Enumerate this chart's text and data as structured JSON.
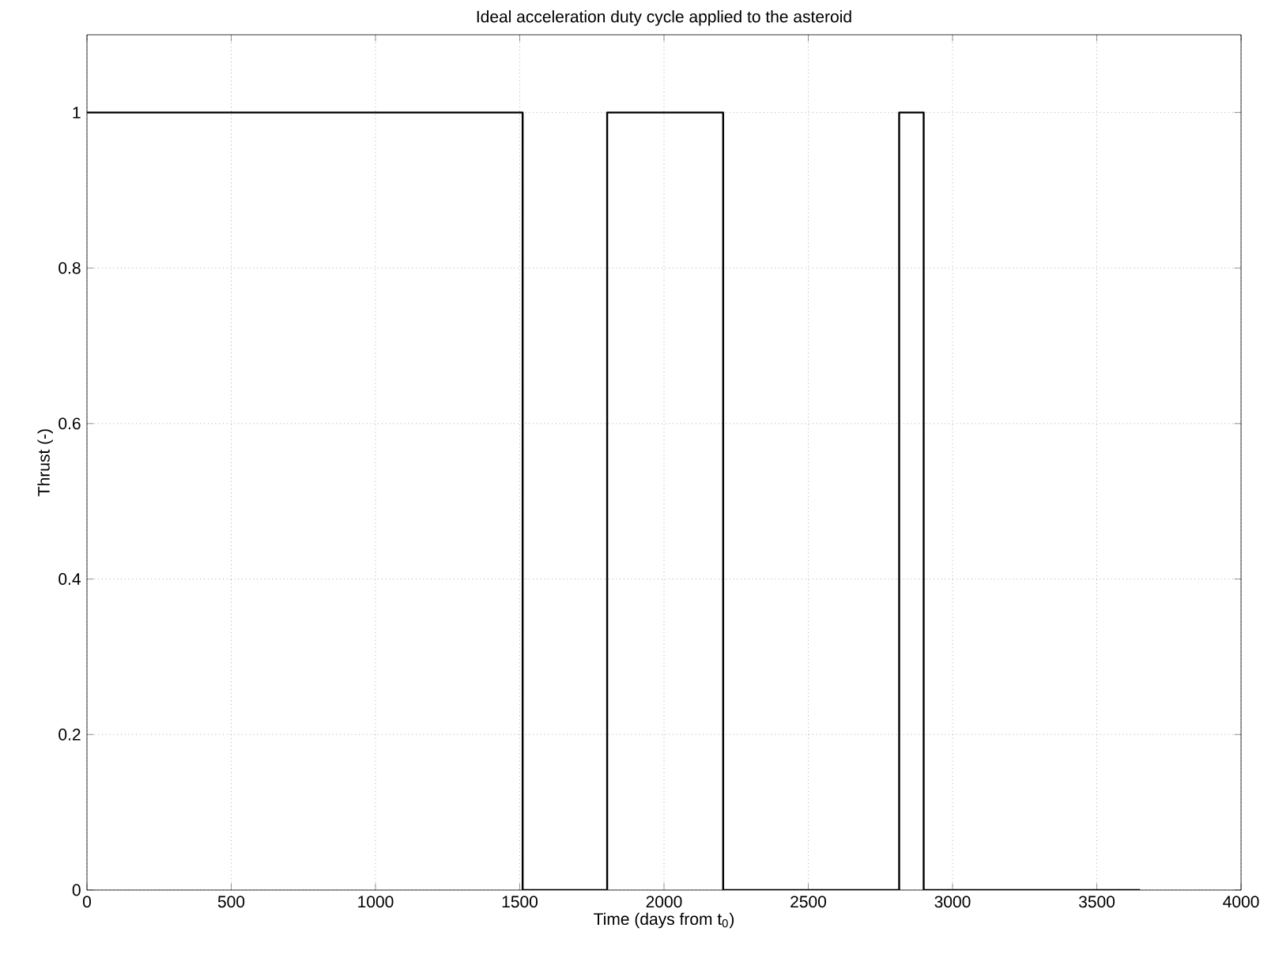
{
  "chart_data": {
    "type": "step",
    "title": "Ideal acceleration duty cycle applied to the asteroid",
    "xlabel": "Time (days from t$_{0}$)",
    "ylabel": "Thrust (-)",
    "x": [
      0,
      1510,
      1803,
      2205,
      2815,
      2900,
      3650
    ],
    "values": [
      1,
      0,
      1,
      0,
      1,
      0,
      0
    ],
    "color": "#000000",
    "xlim": [
      0,
      4000
    ],
    "ylim": [
      0,
      1.1
    ],
    "xticks": [
      0,
      500,
      1000,
      1500,
      2000,
      2500,
      3000,
      3500,
      4000
    ],
    "yticks": [
      0,
      0.2,
      0.4,
      0.6,
      0.8,
      1
    ],
    "grid": true
  }
}
